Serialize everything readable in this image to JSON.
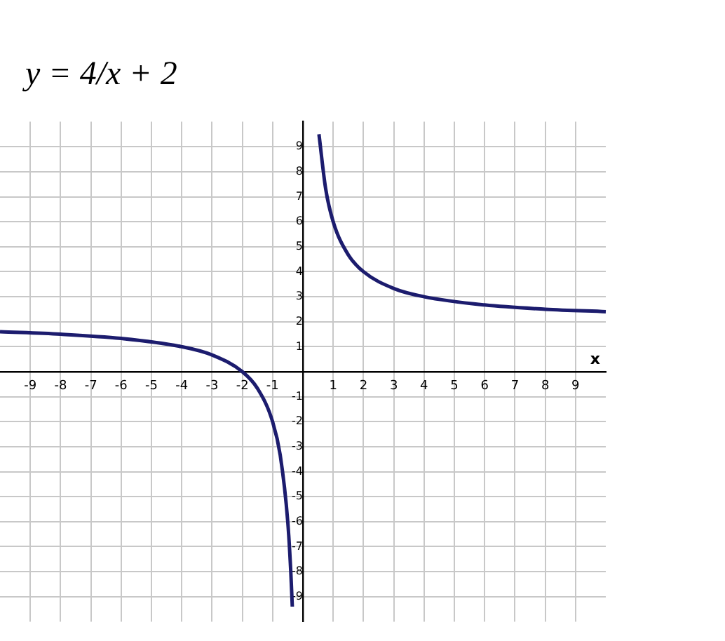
{
  "chart_data": {
    "type": "line",
    "title": "y = 4/x + 2",
    "xlabel": "x",
    "series": [
      {
        "color": "#1c1c6e",
        "x": [
          -10,
          -8,
          -6,
          -4,
          -3,
          -2,
          -1.5,
          -1,
          -0.75,
          -0.5,
          -0.4,
          -0.35
        ],
        "values": [
          1.6,
          1.5,
          1.33,
          1,
          0.67,
          0,
          -0.67,
          -2,
          -3.33,
          -6,
          -8,
          -9.4
        ]
      },
      {
        "color": "#1c1c6e",
        "x": [
          0.53,
          0.75,
          1,
          1.5,
          2,
          3,
          4,
          6,
          8,
          10
        ],
        "values": [
          9.5,
          7.33,
          6,
          4.67,
          4,
          3.33,
          3,
          2.67,
          2.5,
          2.4
        ]
      }
    ],
    "xlim": [
      -10,
      10
    ],
    "ylim": [
      -10,
      10
    ],
    "xticks": [
      -9,
      -8,
      -7,
      -6,
      -5,
      -4,
      -3,
      -2,
      -1,
      1,
      2,
      3,
      4,
      5,
      6,
      7,
      8,
      9
    ],
    "yticks": [
      -9,
      -8,
      -7,
      -6,
      -5,
      -4,
      -3,
      -2,
      -1,
      1,
      2,
      3,
      4,
      5,
      6,
      7,
      8,
      9
    ],
    "grid": true,
    "legend": false,
    "marker": "none",
    "line_style": "solid"
  }
}
